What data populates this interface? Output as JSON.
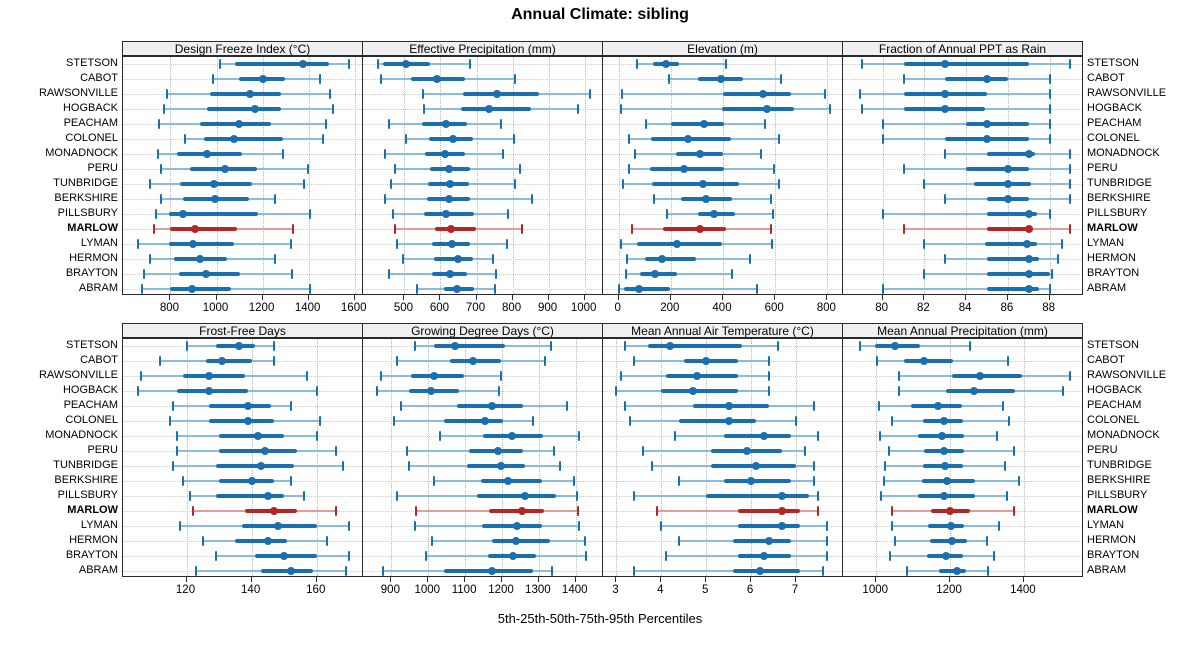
{
  "title": "Annual Climate: sibling",
  "caption": "5th-25th-50th-75th-95th Percentiles",
  "sites": [
    "STETSON",
    "CABOT",
    "RAWSONVILLE",
    "HOGBACK",
    "PEACHAM",
    "COLONEL",
    "MONADNOCK",
    "PERU",
    "TUNBRIDGE",
    "BERKSHIRE",
    "PILLSBURY",
    "MARLOW",
    "LYMAN",
    "HERMON",
    "BRAYTON",
    "ABRAM"
  ],
  "highlight_site": "MARLOW",
  "colors": {
    "series_main": "#1a6faf",
    "series_light": "#8cbcdc",
    "highlight_main": "#b32625",
    "highlight_light": "#dd9e9d",
    "strip_bg": "#f0f0f0",
    "panel_border": "#2a2a2a",
    "grid": "#b9b9b9"
  },
  "chart_data": {
    "type": "scatter",
    "variant": "percentile-interval-dotplot",
    "percentiles": [
      5,
      25,
      50,
      75,
      95
    ],
    "legend_position": "none",
    "grid": "dotted",
    "panels": [
      {
        "title": "Design Freeze Index (°C)",
        "grid_row": 0,
        "grid_col": 0,
        "xlim": [
          594,
          1636
        ],
        "ticks": [
          800,
          1000,
          1200,
          1400,
          1600
        ],
        "values": {
          "STETSON": [
            1016,
            1081,
            1377,
            1488,
            1576
          ],
          "CABOT": [
            983,
            1096,
            1200,
            1298,
            1449
          ],
          "RAWSONVILLE": [
            786,
            970,
            1146,
            1281,
            1493
          ],
          "HOGBACK": [
            774,
            959,
            1168,
            1281,
            1504
          ],
          "PEACHAM": [
            749,
            927,
            1099,
            1237,
            1475
          ],
          "COLONEL": [
            862,
            944,
            1077,
            1288,
            1461
          ],
          "MONADNOCK": [
            747,
            829,
            959,
            1110,
            1288
          ],
          "PERU": [
            761,
            887,
            1038,
            1175,
            1396
          ],
          "TUNBRIDGE": [
            713,
            840,
            988,
            1154,
            1381
          ],
          "BERKSHIRE": [
            757,
            855,
            995,
            1139,
            1255
          ],
          "PILLSBURY": [
            739,
            793,
            855,
            1182,
            1406
          ],
          "MARLOW": [
            728,
            800,
            908,
            1089,
            1331
          ],
          "LYMAN": [
            660,
            793,
            898,
            1074,
            1324
          ],
          "HERMON": [
            713,
            814,
            927,
            1045,
            1255
          ],
          "BRAYTON": [
            685,
            836,
            956,
            1100,
            1327
          ],
          "ABRAM": [
            677,
            797,
            894,
            1064,
            1406
          ]
        }
      },
      {
        "title": "Effective Precipitation (mm)",
        "grid_row": 0,
        "grid_col": 1,
        "xlim": [
          385,
          1051
        ],
        "ticks": [
          500,
          600,
          700,
          800,
          900,
          1000
        ],
        "values": {
          "STETSON": [
            428,
            440,
            505,
            570,
            682
          ],
          "CABOT": [
            435,
            518,
            590,
            668,
            807
          ],
          "RAWSONVILLE": [
            551,
            662,
            757,
            873,
            1014
          ],
          "HOGBACK": [
            554,
            657,
            734,
            852,
            983
          ],
          "PEACHAM": [
            458,
            549,
            614,
            674,
            769
          ],
          "COLONEL": [
            503,
            569,
            634,
            690,
            803
          ],
          "MONADNOCK": [
            447,
            558,
            613,
            669,
            773
          ],
          "PERU": [
            474,
            572,
            625,
            682,
            822
          ],
          "TUNBRIDGE": [
            463,
            565,
            627,
            678,
            806
          ],
          "BERKSHIRE": [
            447,
            563,
            625,
            681,
            855
          ],
          "PILLSBURY": [
            469,
            554,
            616,
            694,
            787
          ],
          "MARLOW": [
            475,
            586,
            630,
            699,
            827
          ],
          "LYMAN": [
            480,
            577,
            632,
            682,
            784
          ],
          "HERMON": [
            495,
            581,
            648,
            690,
            747
          ],
          "BRAYTON": [
            457,
            576,
            627,
            673,
            753
          ],
          "ABRAM": [
            535,
            611,
            646,
            693,
            752
          ]
        }
      },
      {
        "title": "Elevation (m)",
        "grid_row": 0,
        "grid_col": 2,
        "xlim": [
          -60,
          860
        ],
        "ticks": [
          0,
          200,
          400,
          600,
          800
        ],
        "values": {
          "STETSON": [
            72,
            132,
            180,
            231,
            410
          ],
          "CABOT": [
            192,
            304,
            394,
            477,
            621
          ],
          "RAWSONVILLE": [
            14,
            400,
            553,
            662,
            790
          ],
          "HOGBACK": [
            10,
            397,
            569,
            672,
            809
          ],
          "PEACHAM": [
            106,
            199,
            327,
            404,
            560
          ],
          "COLONEL": [
            40,
            123,
            266,
            429,
            615
          ],
          "MONADNOCK": [
            64,
            219,
            311,
            400,
            547
          ],
          "PERU": [
            40,
            119,
            251,
            404,
            596
          ],
          "TUNBRIDGE": [
            17,
            129,
            323,
            461,
            615
          ],
          "BERKSHIRE": [
            134,
            240,
            336,
            435,
            585
          ],
          "PILLSBURY": [
            185,
            304,
            366,
            445,
            592
          ],
          "MARLOW": [
            52,
            170,
            311,
            413,
            585
          ],
          "LYMAN": [
            10,
            72,
            224,
            398,
            589
          ],
          "HERMON": [
            32,
            100,
            167,
            298,
            502
          ],
          "BRAYTON": [
            29,
            81,
            138,
            224,
            436
          ],
          "ABRAM": [
            0,
            20,
            77,
            196,
            532
          ]
        }
      },
      {
        "title": "Fraction of Annual PPT as Rain",
        "grid_row": 0,
        "grid_col": 3,
        "xlim": [
          78.1,
          89.6
        ],
        "ticks": [
          80,
          82,
          84,
          86,
          88
        ],
        "values": {
          "STETSON": [
            79.0,
            81.0,
            83.0,
            87.0,
            89.0
          ],
          "CABOT": [
            81.0,
            83.0,
            85.0,
            86.0,
            88.0
          ],
          "RAWSONVILLE": [
            78.9,
            81.0,
            83.0,
            85.0,
            88.0
          ],
          "HOGBACK": [
            79.0,
            81.0,
            83.0,
            84.9,
            88.0
          ],
          "PEACHAM": [
            80.0,
            84.0,
            85.0,
            87.0,
            88.0
          ],
          "COLONEL": [
            80.0,
            83.0,
            85.0,
            87.0,
            88.0
          ],
          "MONADNOCK": [
            83.0,
            85.0,
            87.0,
            87.3,
            89.0
          ],
          "PERU": [
            81.0,
            84.0,
            86.0,
            87.0,
            89.0
          ],
          "TUNBRIDGE": [
            82.0,
            84.4,
            86.0,
            87.1,
            89.0
          ],
          "BERKSHIRE": [
            83.0,
            85.0,
            86.0,
            87.0,
            89.0
          ],
          "PILLSBURY": [
            80.0,
            85.0,
            87.0,
            87.4,
            88.0
          ],
          "MARLOW": [
            81.0,
            85.0,
            87.0,
            87.2,
            89.0
          ],
          "LYMAN": [
            82.0,
            84.9,
            86.9,
            87.4,
            88.6
          ],
          "HERMON": [
            83.0,
            85.0,
            87.0,
            87.5,
            88.4
          ],
          "BRAYTON": [
            82.0,
            85.0,
            87.0,
            88.0,
            88.1
          ],
          "ABRAM": [
            80.0,
            85.0,
            87.0,
            87.5,
            88.0
          ]
        }
      },
      {
        "title": "Frost-Free Days",
        "grid_row": 1,
        "grid_col": 0,
        "xlim": [
          100.5,
          174.2
        ],
        "ticks": [
          120,
          140,
          160
        ],
        "values": {
          "STETSON": [
            120,
            129,
            136,
            141,
            147
          ],
          "CABOT": [
            112,
            126,
            131,
            140,
            147
          ],
          "RAWSONVILLE": [
            106,
            119,
            127,
            138,
            157
          ],
          "HOGBACK": [
            105,
            117,
            127,
            139,
            160
          ],
          "PEACHAM": [
            116,
            127,
            139,
            146,
            152
          ],
          "COLONEL": [
            115,
            127,
            139,
            147,
            161
          ],
          "MONADNOCK": [
            117,
            130,
            142,
            150,
            160
          ],
          "PERU": [
            117,
            130,
            144,
            154,
            166
          ],
          "TUNBRIDGE": [
            116,
            129,
            143,
            153,
            168
          ],
          "BERKSHIRE": [
            119,
            130,
            140,
            147,
            152
          ],
          "PILLSBURY": [
            121,
            129,
            145,
            150,
            156
          ],
          "MARLOW": [
            122,
            138,
            147,
            154,
            166
          ],
          "LYMAN": [
            118,
            137,
            148,
            160,
            170
          ],
          "HERMON": [
            125,
            135,
            145,
            151,
            163
          ],
          "BRAYTON": [
            129,
            141,
            150,
            160,
            170
          ],
          "ABRAM": [
            123,
            143,
            152,
            159,
            169
          ]
        }
      },
      {
        "title": "Growing Degree Days (°C)",
        "grid_row": 1,
        "grid_col": 1,
        "xlim": [
          823,
          1474
        ],
        "ticks": [
          900,
          1000,
          1100,
          1200,
          1300,
          1400
        ],
        "values": {
          "STETSON": [
            965,
            1016,
            1072,
            1207,
            1334
          ],
          "CABOT": [
            914,
            1058,
            1122,
            1197,
            1318
          ],
          "RAWSONVILLE": [
            871,
            954,
            1016,
            1097,
            1198
          ],
          "HOGBACK": [
            862,
            947,
            1008,
            1083,
            1191
          ],
          "PEACHAM": [
            927,
            1079,
            1174,
            1257,
            1376
          ],
          "COLONEL": [
            906,
            1043,
            1153,
            1203,
            1284
          ],
          "MONADNOCK": [
            1031,
            1149,
            1227,
            1311,
            1409
          ],
          "PERU": [
            941,
            1111,
            1188,
            1257,
            1341
          ],
          "TUNBRIDGE": [
            948,
            1106,
            1197,
            1262,
            1358
          ],
          "BERKSHIRE": [
            1015,
            1144,
            1215,
            1309,
            1395
          ],
          "PILLSBURY": [
            916,
            1133,
            1263,
            1346,
            1404
          ],
          "MARLOW": [
            968,
            1165,
            1253,
            1314,
            1406
          ],
          "LYMAN": [
            963,
            1147,
            1242,
            1309,
            1409
          ],
          "HERMON": [
            1010,
            1173,
            1239,
            1329,
            1424
          ],
          "BRAYTON": [
            995,
            1162,
            1230,
            1291,
            1429
          ],
          "ABRAM": [
            877,
            1043,
            1174,
            1284,
            1337
          ]
        }
      },
      {
        "title": "Mean Annual Air Temperature (°C)",
        "grid_row": 1,
        "grid_col": 2,
        "xlim": [
          2.7,
          8.05
        ],
        "ticks": [
          3,
          4,
          5,
          6,
          7
        ],
        "values": {
          "STETSON": [
            3.2,
            3.7,
            4.2,
            5.8,
            6.6
          ],
          "CABOT": [
            3.4,
            4.5,
            5.0,
            5.7,
            6.4
          ],
          "RAWSONVILLE": [
            3.1,
            4.1,
            4.8,
            5.7,
            6.4
          ],
          "HOGBACK": [
            3.0,
            4.0,
            4.7,
            5.7,
            6.4
          ],
          "PEACHAM": [
            3.2,
            4.7,
            5.5,
            6.4,
            7.4
          ],
          "COLONEL": [
            3.3,
            4.4,
            5.5,
            6.1,
            7.0
          ],
          "MONADNOCK": [
            4.3,
            5.4,
            6.3,
            6.9,
            7.5
          ],
          "PERU": [
            3.6,
            5.1,
            5.9,
            6.7,
            7.2
          ],
          "TUNBRIDGE": [
            3.8,
            5.1,
            6.1,
            7.0,
            7.4
          ],
          "BERKSHIRE": [
            4.4,
            5.4,
            6.0,
            6.9,
            7.4
          ],
          "PILLSBURY": [
            3.4,
            5.0,
            6.7,
            7.3,
            7.5
          ],
          "MARLOW": [
            3.9,
            5.7,
            6.7,
            7.1,
            7.5
          ],
          "LYMAN": [
            4.0,
            5.7,
            6.7,
            7.1,
            7.7
          ],
          "HERMON": [
            4.4,
            5.6,
            6.4,
            6.9,
            7.7
          ],
          "BRAYTON": [
            4.1,
            5.7,
            6.3,
            6.9,
            7.7
          ],
          "ABRAM": [
            3.4,
            5.6,
            6.2,
            7.1,
            7.6
          ]
        }
      },
      {
        "title": "Mean Annual Precipitation (mm)",
        "grid_row": 1,
        "grid_col": 3,
        "xlim": [
          910,
          1560
        ],
        "ticks": [
          1000,
          1200,
          1400
        ],
        "values": {
          "STETSON": [
            955,
            997,
            1051,
            1119,
            1255
          ],
          "CABOT": [
            1003,
            1075,
            1129,
            1207,
            1358
          ],
          "RAWSONVILLE": [
            1063,
            1205,
            1282,
            1394,
            1525
          ],
          "HOGBACK": [
            1061,
            1189,
            1266,
            1377,
            1506
          ],
          "PEACHAM": [
            1007,
            1095,
            1167,
            1232,
            1342
          ],
          "COLONEL": [
            1042,
            1126,
            1183,
            1234,
            1360
          ],
          "MONADNOCK": [
            1011,
            1114,
            1177,
            1237,
            1327
          ],
          "PERU": [
            1034,
            1129,
            1183,
            1237,
            1372
          ],
          "TUNBRIDGE": [
            1025,
            1126,
            1186,
            1234,
            1349
          ],
          "BERKSHIRE": [
            1020,
            1123,
            1192,
            1267,
            1387
          ],
          "PILLSBURY": [
            1014,
            1113,
            1183,
            1268,
            1353
          ],
          "MARLOW": [
            1042,
            1147,
            1200,
            1254,
            1372
          ],
          "LYMAN": [
            1043,
            1141,
            1203,
            1239,
            1333
          ],
          "HERMON": [
            1051,
            1146,
            1205,
            1246,
            1299
          ],
          "BRAYTON": [
            1036,
            1138,
            1189,
            1236,
            1320
          ],
          "ABRAM": [
            1083,
            1171,
            1218,
            1243,
            1304
          ]
        }
      }
    ]
  }
}
